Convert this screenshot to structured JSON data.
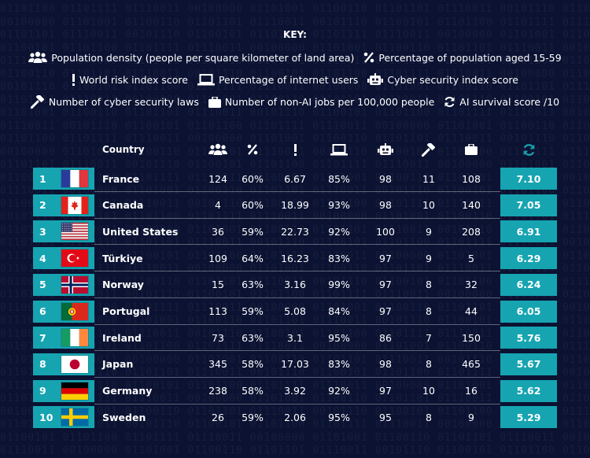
{
  "key": {
    "title": "KEY:",
    "items": [
      {
        "icon": "people-icon",
        "label": "Population density (people per square kilometer of land area)"
      },
      {
        "icon": "percent-icon",
        "label": "Percentage of population aged 15-59"
      },
      {
        "icon": "exclamation-icon",
        "label": "World risk index score"
      },
      {
        "icon": "laptop-icon",
        "label": "Percentage of internet users"
      },
      {
        "icon": "robot-icon",
        "label": "Cyber security index score"
      },
      {
        "icon": "gavel-icon",
        "label": "Number of cyber security laws"
      },
      {
        "icon": "briefcase-icon",
        "label": "Number of non-AI jobs per 100,000 people"
      },
      {
        "icon": "refresh-icon",
        "label": "AI survival score /10"
      }
    ]
  },
  "table": {
    "country_header": "Country",
    "rows": [
      {
        "rank": "1",
        "country": "France",
        "flag": "france",
        "density": "124",
        "age": "60%",
        "risk": "6.67",
        "internet": "85%",
        "cyber": "98",
        "laws": "11",
        "jobs": "108",
        "score": "7.10"
      },
      {
        "rank": "2",
        "country": "Canada",
        "flag": "canada",
        "density": "4",
        "age": "60%",
        "risk": "18.99",
        "internet": "93%",
        "cyber": "98",
        "laws": "10",
        "jobs": "140",
        "score": "7.05"
      },
      {
        "rank": "3",
        "country": "United States",
        "flag": "usa",
        "density": "36",
        "age": "59%",
        "risk": "22.73",
        "internet": "92%",
        "cyber": "100",
        "laws": "9",
        "jobs": "208",
        "score": "6.91"
      },
      {
        "rank": "4",
        "country": "Türkiye",
        "flag": "turkey",
        "density": "109",
        "age": "64%",
        "risk": "16.23",
        "internet": "83%",
        "cyber": "97",
        "laws": "9",
        "jobs": "5",
        "score": "6.29"
      },
      {
        "rank": "5",
        "country": "Norway",
        "flag": "norway",
        "density": "15",
        "age": "63%",
        "risk": "3.16",
        "internet": "99%",
        "cyber": "97",
        "laws": "8",
        "jobs": "32",
        "score": "6.24"
      },
      {
        "rank": "6",
        "country": "Portugal",
        "flag": "portugal",
        "density": "113",
        "age": "59%",
        "risk": "5.08",
        "internet": "84%",
        "cyber": "97",
        "laws": "8",
        "jobs": "44",
        "score": "6.05"
      },
      {
        "rank": "7",
        "country": "Ireland",
        "flag": "ireland",
        "density": "73",
        "age": "63%",
        "risk": "3.1",
        "internet": "95%",
        "cyber": "86",
        "laws": "7",
        "jobs": "150",
        "score": "5.76"
      },
      {
        "rank": "8",
        "country": "Japan",
        "flag": "japan",
        "density": "345",
        "age": "58%",
        "risk": "17.03",
        "internet": "83%",
        "cyber": "98",
        "laws": "8",
        "jobs": "465",
        "score": "5.67"
      },
      {
        "rank": "9",
        "country": "Germany",
        "flag": "germany",
        "density": "238",
        "age": "58%",
        "risk": "3.92",
        "internet": "92%",
        "cyber": "97",
        "laws": "10",
        "jobs": "16",
        "score": "5.62"
      },
      {
        "rank": "10",
        "country": "Sweden",
        "flag": "sweden",
        "density": "26",
        "age": "59%",
        "risk": "2.06",
        "internet": "95%",
        "cyber": "95",
        "laws": "8",
        "jobs": "9",
        "score": "5.29"
      }
    ]
  },
  "colors": {
    "background": "#0b1232",
    "accent": "#16a4b1",
    "text": "#ffffff"
  }
}
